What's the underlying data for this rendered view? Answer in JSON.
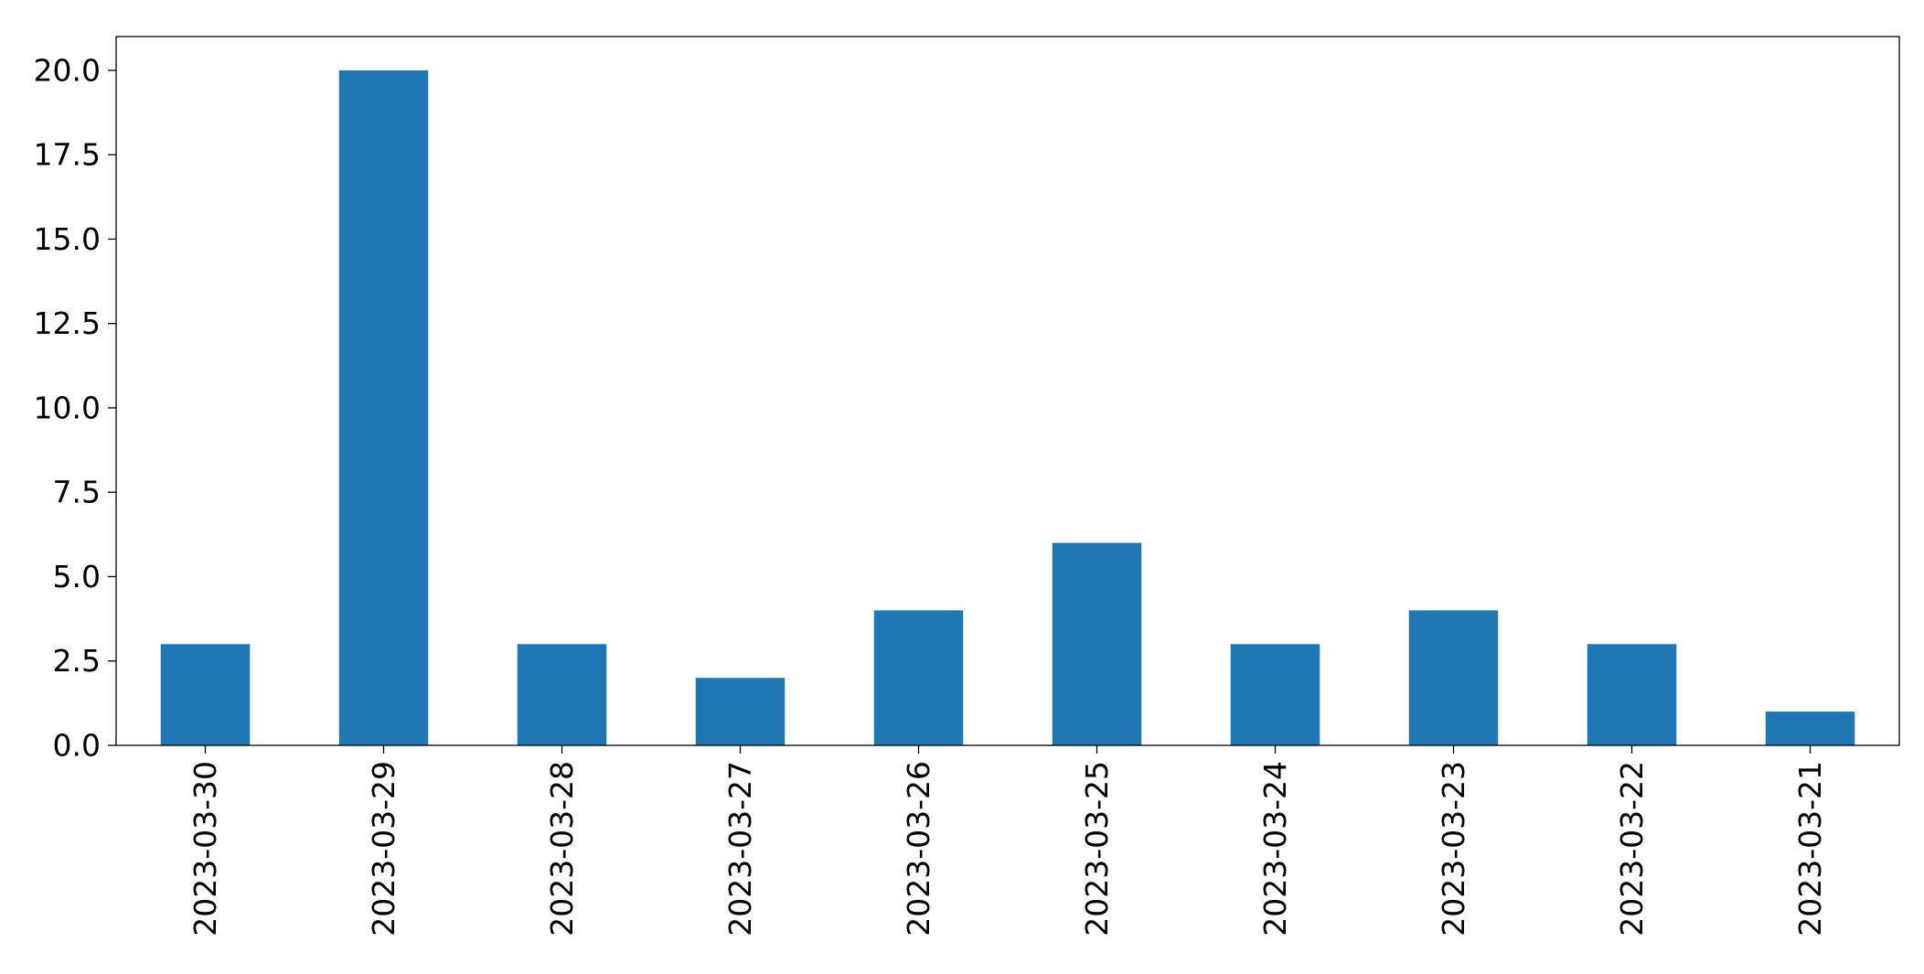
{
  "chart_data": {
    "type": "bar",
    "title": "",
    "xlabel": "",
    "ylabel": "",
    "categories": [
      "2023-03-30",
      "2023-03-29",
      "2023-03-28",
      "2023-03-27",
      "2023-03-26",
      "2023-03-25",
      "2023-03-24",
      "2023-03-23",
      "2023-03-22",
      "2023-03-21"
    ],
    "values": [
      3,
      20,
      3,
      2,
      4,
      6,
      3,
      4,
      3,
      1
    ],
    "ylim": [
      0,
      21
    ],
    "yticks": [
      "0.0",
      "2.5",
      "5.0",
      "7.5",
      "10.0",
      "12.5",
      "15.0",
      "17.5",
      "20.0"
    ],
    "bar_color": "#1f77b4",
    "grid": false,
    "legend": "none"
  }
}
